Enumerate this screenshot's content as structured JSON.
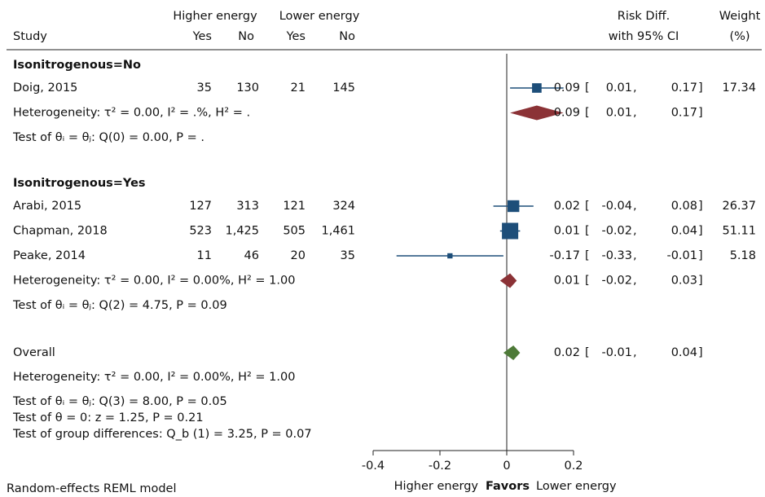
{
  "chart_data": {
    "type": "forest",
    "header": {
      "group_a": "Higher energy",
      "group_b": "Lower energy",
      "study": "Study",
      "cols": [
        "Yes",
        "No",
        "Yes",
        "No"
      ],
      "effect": [
        "Risk Diff.",
        "with 95% CI"
      ],
      "weight": [
        "Weight",
        "(%)"
      ]
    },
    "ci_open": "[",
    "ci_sep": ",",
    "ci_close": "]",
    "groups": [
      {
        "label": "Isonitrogenous=No",
        "studies": [
          {
            "name": "Doig, 2015",
            "counts": [
              "35",
              "130",
              "21",
              "145"
            ],
            "estimate": 0.09,
            "ci": [
              0.01,
              0.17
            ],
            "weight": 17.34
          }
        ],
        "pooled": {
          "estimate": 0.09,
          "ci": [
            0.01,
            0.17
          ],
          "color": "#8b3236"
        },
        "heterogeneity": "Heterogeneity:  τ² = 0.00, I² = .%, H² = .",
        "test": "Test of  θᵢ = θⱼ: Q(0) = 0.00, P = ."
      },
      {
        "label": "Isonitrogenous=Yes",
        "studies": [
          {
            "name": "Arabi, 2015",
            "counts": [
              "127",
              "313",
              "121",
              "324"
            ],
            "estimate": 0.02,
            "ci": [
              -0.04,
              0.08
            ],
            "weight": 26.37
          },
          {
            "name": "Chapman, 2018",
            "counts": [
              "523",
              "1,425",
              "505",
              "1,461"
            ],
            "estimate": 0.01,
            "ci": [
              -0.02,
              0.04
            ],
            "weight": 51.11
          },
          {
            "name": "Peake, 2014",
            "counts": [
              "11",
              "46",
              "20",
              "35"
            ],
            "estimate": -0.17,
            "ci": [
              -0.33,
              -0.01
            ],
            "weight": 5.18
          }
        ],
        "pooled": {
          "estimate": 0.01,
          "ci": [
            -0.02,
            0.03
          ],
          "color": "#8b3236"
        },
        "heterogeneity": "Heterogeneity:  τ² = 0.00, I² = 0.00%, H² = 1.00",
        "test": "Test of  θᵢ = θⱼ: Q(2) = 4.75, P = 0.09"
      }
    ],
    "overall": {
      "label": "Overall",
      "estimate": 0.02,
      "ci": [
        -0.01,
        0.04
      ],
      "color": "#4e7a38",
      "heterogeneity": "Heterogeneity:  τ² = 0.00, I² = 0.00%, H² = 1.00",
      "tests": [
        "Test of  θᵢ = θⱼ: Q(3) = 8.00, P = 0.05",
        "Test of  θ = 0: z = 1.25, P = 0.21",
        "Test of group differences: Q_b (1) = 3.25, P = 0.07"
      ]
    },
    "study_color": "#1d4e79",
    "xlim": [
      -0.4,
      0.2
    ],
    "xticks": [
      -0.4,
      -0.2,
      0,
      0.2
    ],
    "xlabel": [
      "Higher energy",
      "Favors",
      "Lower energy"
    ],
    "note": "Random-effects REML model"
  }
}
